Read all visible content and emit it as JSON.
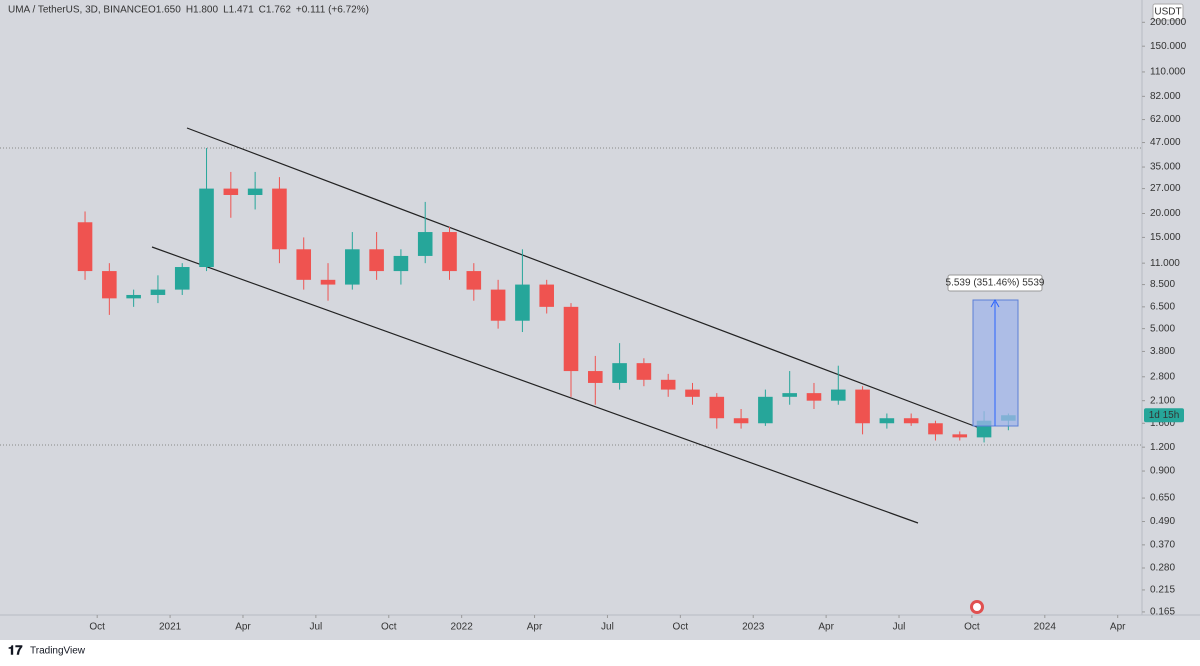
{
  "chart_data": {
    "type": "candlestick",
    "title": "UMA / TetherUS, 3D, BINANCE",
    "ohlc_header": [
      "O1.650",
      "H1.800",
      "L1.471",
      "C1.762",
      "+0.111 (+6.72%)"
    ],
    "currency": "USDT",
    "countdown": "1d 15h",
    "measure_label": "5.539 (351.46%) 5539",
    "branding": "TradingView",
    "up_color": "#26a69a",
    "down_color": "#ef5350",
    "log_scale": true,
    "grid": false,
    "x": [
      "2020-09",
      "2020-10",
      "2020-11",
      "2020-12",
      "2021-01",
      "2021-02",
      "2021-03",
      "2021-04",
      "2021-05",
      "2021-06",
      "2021-07",
      "2021-08",
      "2021-09",
      "2021-10",
      "2021-11",
      "2021-12",
      "2022-01",
      "2022-02",
      "2022-03",
      "2022-04",
      "2022-05",
      "2022-06",
      "2022-07",
      "2022-08",
      "2022-09",
      "2022-10",
      "2022-11",
      "2022-12",
      "2023-01",
      "2023-02",
      "2023-03",
      "2023-04",
      "2023-05",
      "2023-06",
      "2023-07",
      "2023-08",
      "2023-09",
      "2023-10",
      "2023-11"
    ],
    "open": [
      18,
      10,
      7.2,
      7.5,
      8,
      10.5,
      27,
      25,
      27,
      13,
      9,
      8.5,
      13,
      10,
      12,
      16,
      10,
      8,
      5.5,
      8.5,
      6.5,
      3,
      2.6,
      3.3,
      2.7,
      2.4,
      2.2,
      1.7,
      1.6,
      2.2,
      2.3,
      2.1,
      2.4,
      1.6,
      1.7,
      1.6,
      1.4,
      1.35,
      1.65
    ],
    "high": [
      20.5,
      11,
      8,
      9.5,
      11,
      44,
      33,
      33,
      31,
      15,
      11,
      16,
      16,
      13,
      23,
      17,
      11,
      9,
      13,
      9,
      6.8,
      3.6,
      4.2,
      3.5,
      2.9,
      2.6,
      2.3,
      1.9,
      2.4,
      3.0,
      2.6,
      3.2,
      2.5,
      1.8,
      1.8,
      1.65,
      1.45,
      1.85,
      1.8
    ],
    "low": [
      9,
      5.9,
      6.5,
      6.8,
      7.5,
      10,
      19,
      21,
      11,
      8,
      7,
      8,
      9,
      8.5,
      11,
      9,
      7,
      5,
      4.8,
      6,
      2.2,
      2,
      2.4,
      2.5,
      2.2,
      2.0,
      1.5,
      1.5,
      1.55,
      2.0,
      1.9,
      2.0,
      1.4,
      1.5,
      1.55,
      1.3,
      1.3,
      1.27,
      1.471
    ],
    "close": [
      10,
      7.2,
      7.5,
      8,
      10.5,
      27,
      25,
      27,
      13,
      9,
      8.5,
      13,
      10,
      12,
      16,
      10,
      8,
      5.5,
      8.5,
      6.5,
      3,
      2.6,
      3.3,
      2.7,
      2.4,
      2.2,
      1.7,
      1.6,
      2.2,
      2.3,
      2.1,
      2.4,
      1.6,
      1.7,
      1.6,
      1.4,
      1.35,
      1.65,
      1.762
    ],
    "xlim": [
      "2020-06",
      "2024-05"
    ],
    "xticks": [
      {
        "value": "2020-10",
        "label": "Oct"
      },
      {
        "value": "2021-01",
        "label": "2021"
      },
      {
        "value": "2021-04",
        "label": "Apr"
      },
      {
        "value": "2021-07",
        "label": "Jul"
      },
      {
        "value": "2021-10",
        "label": "Oct"
      },
      {
        "value": "2022-01",
        "label": "2022"
      },
      {
        "value": "2022-04",
        "label": "Apr"
      },
      {
        "value": "2022-07",
        "label": "Jul"
      },
      {
        "value": "2022-10",
        "label": "Oct"
      },
      {
        "value": "2023-01",
        "label": "2023"
      },
      {
        "value": "2023-04",
        "label": "Apr"
      },
      {
        "value": "2023-07",
        "label": "Jul"
      },
      {
        "value": "2023-10",
        "label": "Oct"
      },
      {
        "value": "2024-01",
        "label": "2024"
      },
      {
        "value": "2024-04",
        "label": "Apr"
      }
    ],
    "ylim": [
      0.159,
      261.6
    ],
    "yticks": [
      {
        "value": 200,
        "label": "200.000"
      },
      {
        "value": 150,
        "label": "150.000"
      },
      {
        "value": 110,
        "label": "110.000"
      },
      {
        "value": 82,
        "label": "82.000"
      },
      {
        "value": 62,
        "label": "62.000"
      },
      {
        "value": 47,
        "label": "47.000"
      },
      {
        "value": 35,
        "label": "35.000"
      },
      {
        "value": 27,
        "label": "27.000"
      },
      {
        "value": 20,
        "label": "20.000"
      },
      {
        "value": 15,
        "label": "15.000"
      },
      {
        "value": 11,
        "label": "11.000"
      },
      {
        "value": 8.5,
        "label": "8.500"
      },
      {
        "value": 6.5,
        "label": "6.500"
      },
      {
        "value": 5,
        "label": "5.000"
      },
      {
        "value": 3.8,
        "label": "3.800"
      },
      {
        "value": 2.8,
        "label": "2.800"
      },
      {
        "value": 2.1,
        "label": "2.100"
      },
      {
        "value": 1.6,
        "label": "1.600"
      },
      {
        "value": 1.2,
        "label": "1.200"
      },
      {
        "value": 0.9,
        "label": "0.900"
      },
      {
        "value": 0.65,
        "label": "0.650"
      },
      {
        "value": 0.49,
        "label": "0.490"
      },
      {
        "value": 0.37,
        "label": "0.370"
      },
      {
        "value": 0.28,
        "label": "0.280"
      },
      {
        "value": 0.215,
        "label": "0.215"
      },
      {
        "value": 0.165,
        "label": "0.165"
      }
    ]
  }
}
